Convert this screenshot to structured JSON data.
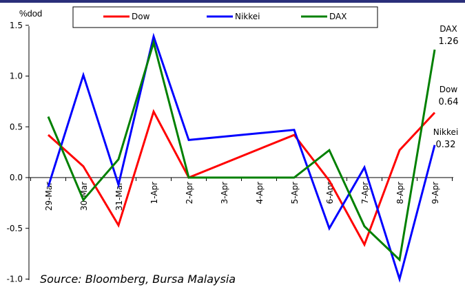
{
  "chart_data": {
    "type": "line",
    "ylabel": "%dod",
    "ylim": [
      -1.0,
      1.5
    ],
    "ytick_labels": [
      "1.5",
      "1.0",
      "0.5",
      "0.0",
      "-0.5",
      "-1.0"
    ],
    "categories": [
      "29-Mar",
      "30-Mar",
      "31-Mar",
      "1-Apr",
      "2-Apr",
      "3-Apr",
      "4-Apr",
      "5-Apr",
      "6-Apr",
      "7-Apr",
      "8-Apr",
      "9-Apr"
    ],
    "series": [
      {
        "name": "Dow",
        "color": "#ff0000",
        "values": [
          0.42,
          0.11,
          -0.47,
          0.65,
          0.0,
          null,
          null,
          0.42,
          -0.03,
          -0.66,
          0.27,
          0.64
        ]
      },
      {
        "name": "Nikkei",
        "color": "#0000ff",
        "values": [
          -0.09,
          1.01,
          -0.07,
          1.39,
          0.37,
          null,
          null,
          0.47,
          -0.5,
          0.1,
          -1.03,
          0.32
        ]
      },
      {
        "name": "DAX",
        "color": "#008000",
        "values": [
          0.6,
          -0.22,
          0.18,
          1.33,
          0.0,
          0.0,
          0.0,
          0.0,
          0.27,
          -0.48,
          -0.81,
          1.26
        ]
      }
    ],
    "end_labels": [
      {
        "series": "DAX",
        "name": "DAX",
        "value": "1.26"
      },
      {
        "series": "Dow",
        "name": "Dow",
        "value": "0.64"
      },
      {
        "series": "Nikkei",
        "name": "Nikkei",
        "value": "0.32"
      }
    ],
    "legend_position": "top",
    "grid": false
  },
  "source": "Source: Bloomberg, Bursa Malaysia"
}
